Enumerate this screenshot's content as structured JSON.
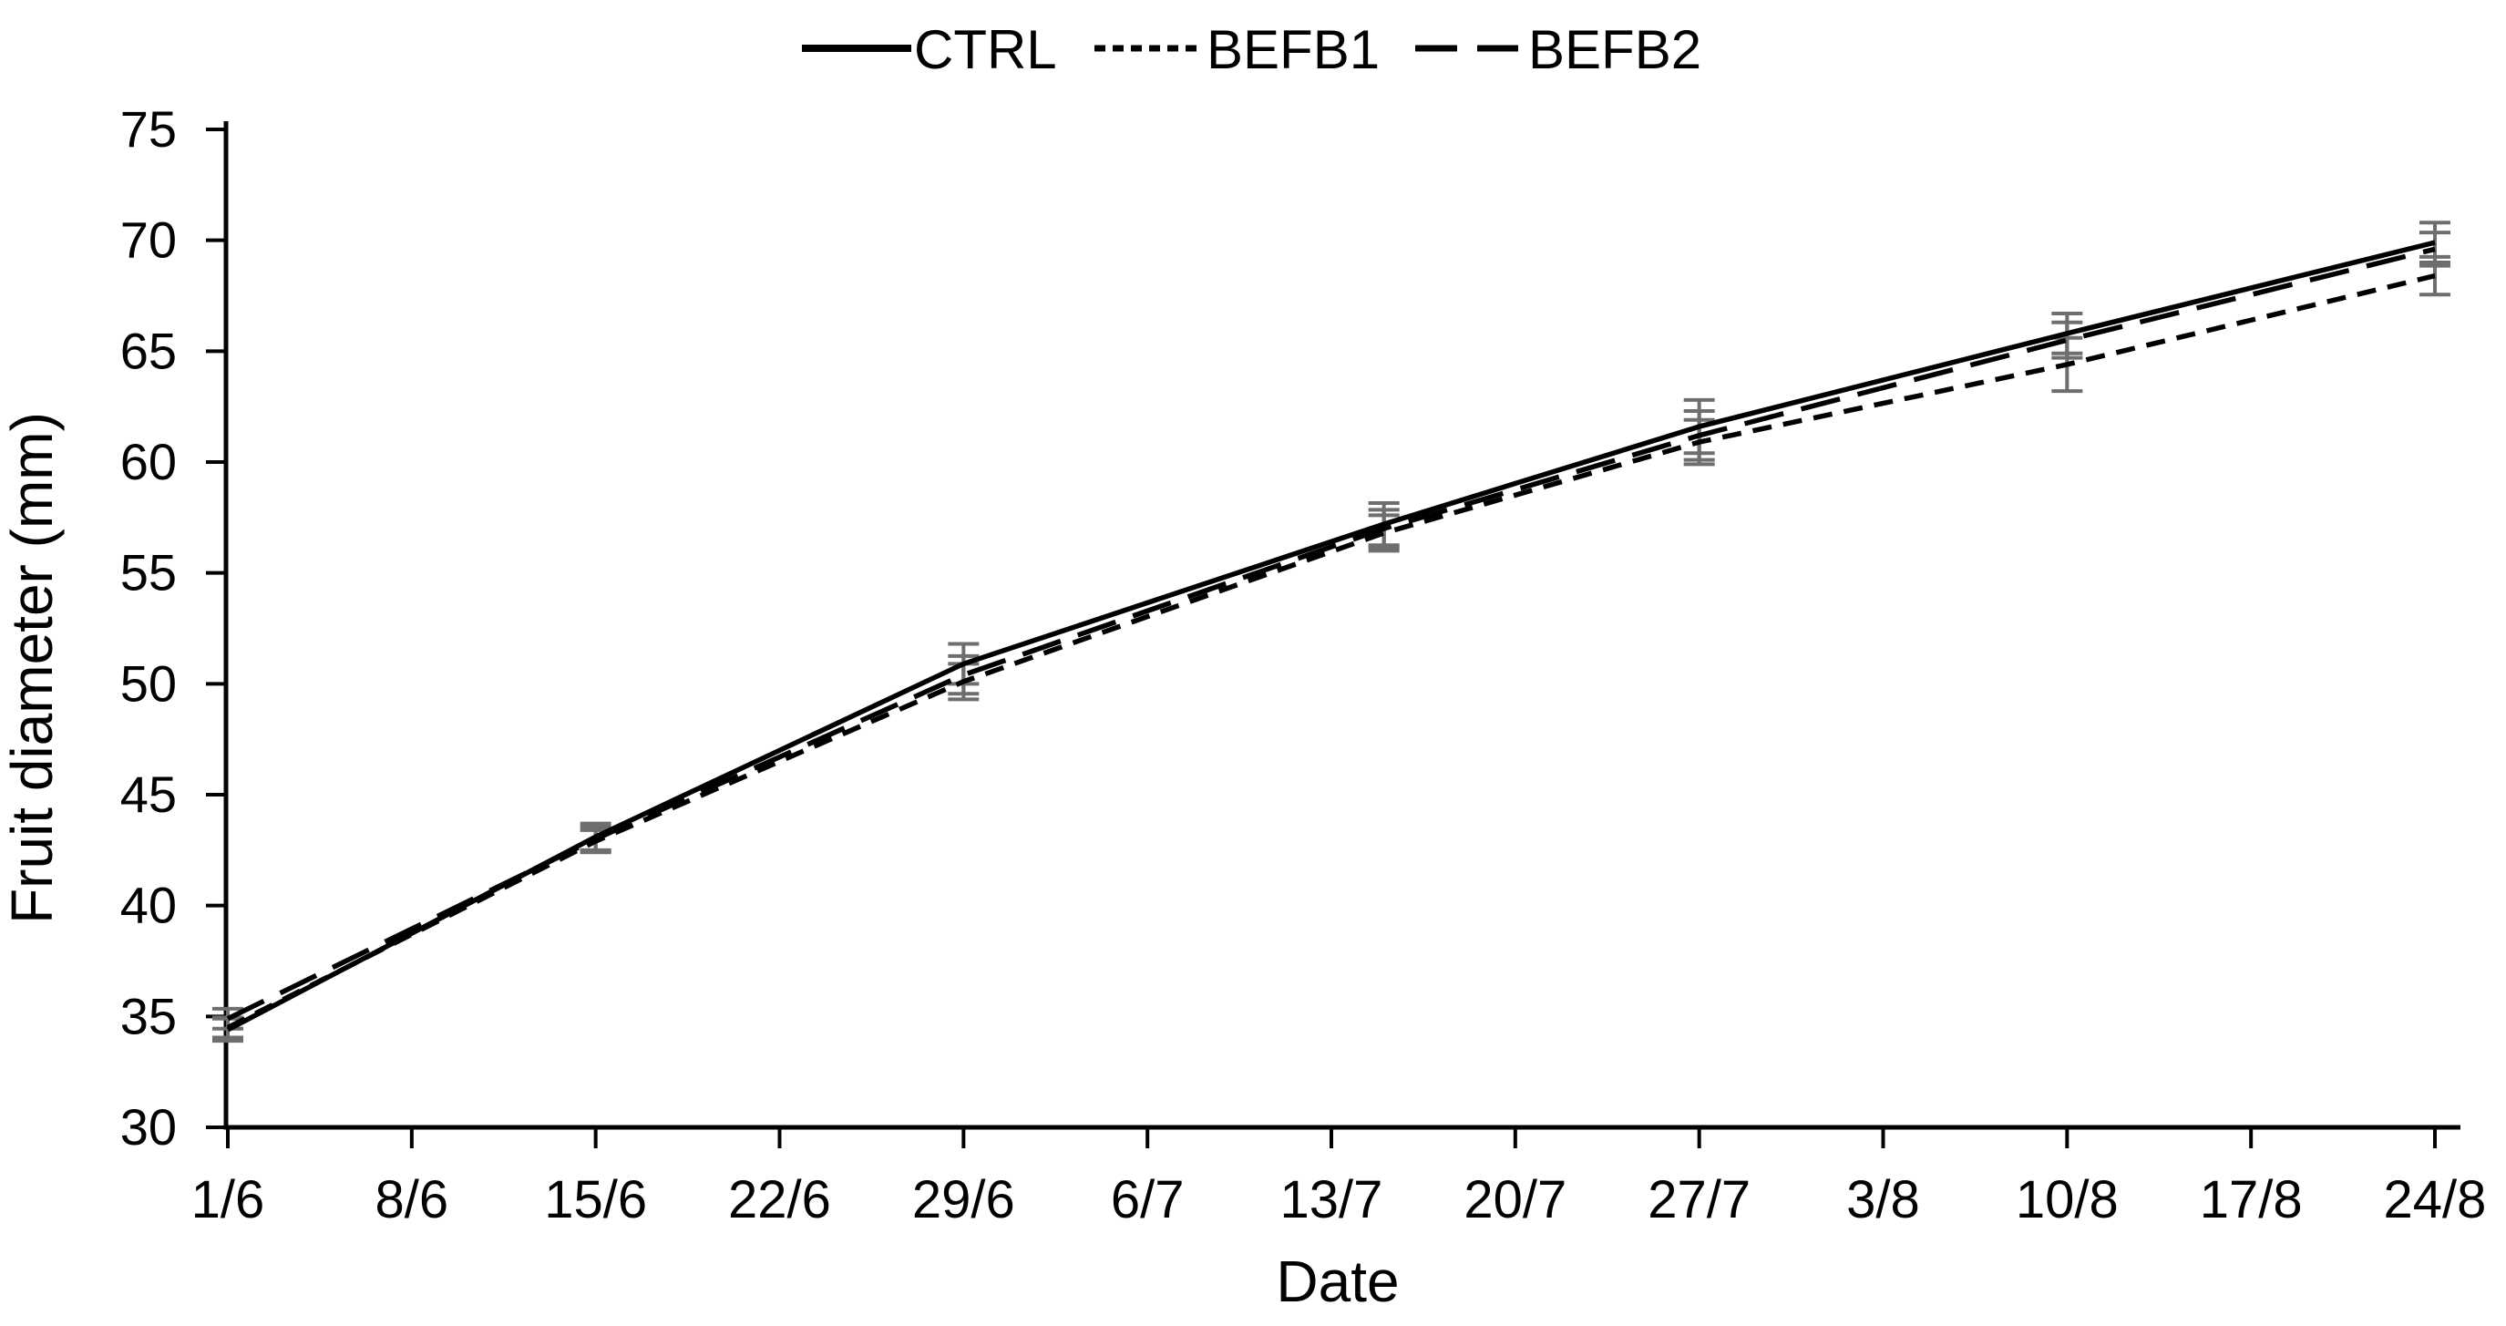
{
  "figure": {
    "background": "#ffffff",
    "text_color": "#000000",
    "axis_color": "#000000"
  },
  "chart_data": {
    "type": "line",
    "title": "",
    "xlabel": "Date",
    "ylabel": "Fruit diameter (mm)",
    "ylim": [
      30,
      75
    ],
    "y_ticks": [
      30,
      35,
      40,
      45,
      50,
      55,
      60,
      65,
      70,
      75
    ],
    "x_tick_labels": [
      "1/6",
      "8/6",
      "15/6",
      "22/6",
      "29/6",
      "6/7",
      "13/7",
      "20/7",
      "27/7",
      "3/8",
      "10/8",
      "17/8",
      "24/8"
    ],
    "x_tick_days": [
      0,
      7,
      14,
      21,
      28,
      35,
      42,
      49,
      56,
      63,
      70,
      77,
      84
    ],
    "grid": false,
    "legend_position": "top",
    "legend": [
      "CTRL",
      "BEFB1",
      "BEFB2"
    ],
    "x": [
      "1/6",
      "15/6",
      "29/6",
      "15/7",
      "27/7",
      "10/8",
      "24/8"
    ],
    "x_days": [
      0,
      14,
      28,
      44,
      56,
      70,
      84
    ],
    "series": [
      {
        "name": "CTRL",
        "line_style": "solid",
        "color": "#000000",
        "values": [
          34.4,
          43.1,
          50.9,
          57.2,
          61.6,
          65.8,
          69.9
        ],
        "errors": [
          0.5,
          0.6,
          0.9,
          0.95,
          1.2,
          0.9,
          0.9
        ]
      },
      {
        "name": "BEFB1",
        "line_style": "dotted",
        "color": "#000000",
        "values": [
          34.5,
          42.9,
          50.1,
          56.8,
          60.9,
          64.4,
          68.4
        ],
        "errors": [
          0.45,
          0.5,
          0.8,
          0.8,
          1.0,
          1.2,
          0.85
        ]
      },
      {
        "name": "BEFB2",
        "line_style": "dashed",
        "color": "#000000",
        "values": [
          34.9,
          43.0,
          50.4,
          57.0,
          61.2,
          65.5,
          69.6
        ],
        "errors": [
          0.45,
          0.55,
          0.85,
          0.85,
          1.1,
          0.8,
          0.75
        ]
      }
    ],
    "error_bar_color": "#6e6e6e"
  }
}
